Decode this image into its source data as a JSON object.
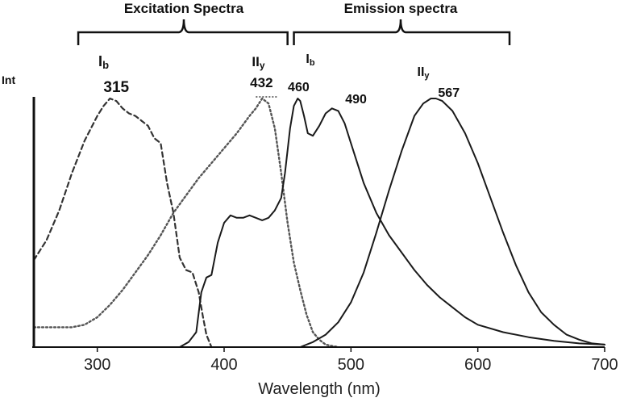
{
  "chart_data": {
    "type": "line",
    "title": "",
    "xlabel": "Wavelength (nm)",
    "ylabel": "Int",
    "xlim": [
      250,
      700
    ],
    "ylim": [
      0,
      1
    ],
    "grid": false,
    "xticks": [
      300,
      400,
      500,
      600,
      700
    ],
    "xtick_labels": [
      "300",
      "400",
      "500",
      "600",
      "700"
    ],
    "groups": [
      {
        "label": "Excitation Spectra",
        "range": [
          285,
          450
        ]
      },
      {
        "label": "Emission spectra",
        "range": [
          455,
          625
        ]
      }
    ],
    "peak_labels": [
      {
        "text": "315",
        "wavelength": 315
      },
      {
        "text": "432",
        "wavelength": 432
      },
      {
        "text": "460",
        "wavelength": 460
      },
      {
        "text": "490",
        "wavelength": 490
      },
      {
        "text": "567",
        "wavelength": 567
      }
    ],
    "band_labels": [
      {
        "main": "I",
        "sub": "b",
        "wavelength": 305
      },
      {
        "main": "II",
        "sub": "y",
        "wavelength": 427
      },
      {
        "main": "I",
        "sub": "b",
        "wavelength": 468
      },
      {
        "main": "II",
        "sub": "y",
        "wavelength": 557
      }
    ],
    "series": [
      {
        "name": "Ib excitation",
        "style": "dashed",
        "x": [
          250,
          260,
          270,
          280,
          290,
          300,
          305,
          310,
          315,
          320,
          325,
          330,
          335,
          340,
          345,
          350,
          355,
          360,
          365,
          370,
          375,
          380,
          383,
          386,
          390
        ],
        "y": [
          0.35,
          0.43,
          0.55,
          0.7,
          0.83,
          0.93,
          0.97,
          1.0,
          0.99,
          0.96,
          0.94,
          0.93,
          0.91,
          0.89,
          0.84,
          0.82,
          0.66,
          0.54,
          0.36,
          0.31,
          0.3,
          0.22,
          0.13,
          0.05,
          0.0
        ]
      },
      {
        "name": "IIy excitation",
        "style": "dotted",
        "x": [
          250,
          260,
          270,
          280,
          290,
          300,
          310,
          320,
          330,
          340,
          350,
          360,
          370,
          380,
          390,
          400,
          410,
          420,
          425,
          430,
          435,
          440,
          445,
          450,
          455,
          460,
          465,
          470,
          475,
          480,
          485,
          490
        ],
        "y": [
          0.08,
          0.08,
          0.08,
          0.08,
          0.09,
          0.12,
          0.17,
          0.23,
          0.3,
          0.37,
          0.45,
          0.54,
          0.61,
          0.68,
          0.74,
          0.8,
          0.86,
          0.93,
          0.96,
          1.0,
          0.98,
          0.88,
          0.7,
          0.5,
          0.34,
          0.23,
          0.13,
          0.06,
          0.03,
          0.01,
          0.005,
          0.0
        ]
      },
      {
        "name": "Ib emission",
        "style": "solid",
        "x": [
          365,
          372,
          378,
          382,
          386,
          390,
          395,
          400,
          405,
          410,
          415,
          420,
          425,
          430,
          435,
          440,
          445,
          448,
          452,
          455,
          458,
          460,
          463,
          466,
          470,
          475,
          480,
          485,
          490,
          495,
          500,
          510,
          520,
          530,
          540,
          550,
          560,
          570,
          580,
          590,
          600,
          620,
          640,
          660,
          680,
          700
        ],
        "y": [
          0.0,
          0.02,
          0.06,
          0.22,
          0.28,
          0.29,
          0.42,
          0.5,
          0.53,
          0.52,
          0.52,
          0.53,
          0.52,
          0.51,
          0.52,
          0.55,
          0.6,
          0.7,
          0.88,
          0.97,
          1.0,
          0.99,
          0.93,
          0.86,
          0.85,
          0.89,
          0.94,
          0.96,
          0.95,
          0.9,
          0.82,
          0.66,
          0.54,
          0.45,
          0.38,
          0.31,
          0.25,
          0.2,
          0.16,
          0.12,
          0.09,
          0.06,
          0.04,
          0.025,
          0.015,
          0.01
        ]
      },
      {
        "name": "IIy emission",
        "style": "solid",
        "x": [
          460,
          470,
          480,
          490,
          500,
          510,
          520,
          530,
          540,
          550,
          557,
          563,
          567,
          572,
          580,
          590,
          600,
          610,
          620,
          630,
          640,
          650,
          660,
          670,
          680,
          690,
          700
        ],
        "y": [
          0.0,
          0.02,
          0.05,
          0.1,
          0.18,
          0.3,
          0.46,
          0.63,
          0.79,
          0.93,
          0.98,
          1.0,
          1.0,
          0.99,
          0.95,
          0.86,
          0.74,
          0.6,
          0.46,
          0.33,
          0.22,
          0.14,
          0.09,
          0.05,
          0.03,
          0.015,
          0.01
        ]
      }
    ]
  }
}
